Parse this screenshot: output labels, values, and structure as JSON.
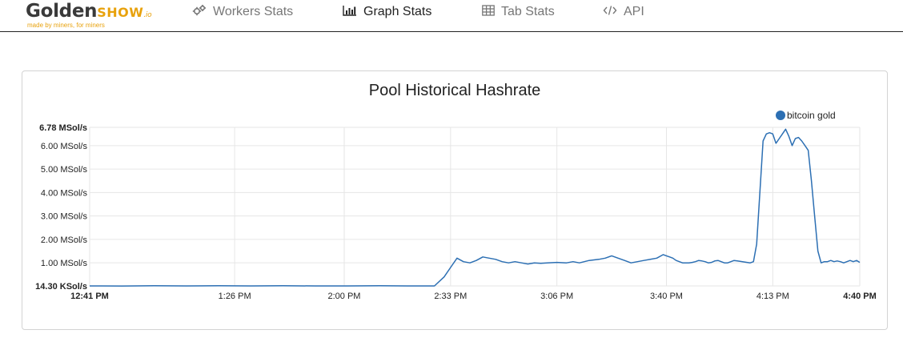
{
  "navbar": {
    "logo": {
      "golden": "Golden",
      "show": "SHOW",
      "io": ".io",
      "tagline": "made by miners, for miners"
    },
    "items": [
      {
        "label": "Workers Stats",
        "icon": "gears-icon",
        "active": false
      },
      {
        "label": "Graph Stats",
        "icon": "bar-chart-icon",
        "active": true
      },
      {
        "label": "Tab Stats",
        "icon": "table-icon",
        "active": false
      },
      {
        "label": "API",
        "icon": "code-icon",
        "active": false
      }
    ]
  },
  "colors": {
    "accent": "#e8a20d",
    "series": "#2c6fb3",
    "grid": "#e6e6e6"
  },
  "chart_data": {
    "type": "line",
    "title": "Pool Historical Hashrate",
    "xlabel": "",
    "ylabel": "",
    "x_ticks": [
      "12:41 PM",
      "1:26 PM",
      "2:00 PM",
      "2:33 PM",
      "3:06 PM",
      "3:40 PM",
      "4:13 PM",
      "4:40 PM"
    ],
    "y_ticks": [
      "6.78 MSol/s",
      "6.00 MSol/s",
      "5.00 MSol/s",
      "4.00 MSol/s",
      "3.00 MSol/s",
      "2.00 MSol/s",
      "1.00 MSol/s",
      "14.30 KSol/s"
    ],
    "y_min_label": "14.30 KSol/s",
    "y_max_label": "6.78 MSol/s",
    "x_start_label": "12:41 PM",
    "x_end_label": "4:40 PM",
    "ylim": [
      0.0143,
      6.78
    ],
    "xlim_minutes": [
      0,
      239
    ],
    "legend": {
      "position": "top-right"
    },
    "grid": true,
    "series": [
      {
        "name": "bitcoin gold",
        "x_minutes": [
          0,
          10,
          20,
          30,
          40,
          50,
          60,
          70,
          80,
          90,
          100,
          107,
          110,
          112,
          114,
          116,
          118,
          120,
          122,
          124,
          126,
          128,
          130,
          132,
          134,
          136,
          138,
          140,
          142,
          145,
          148,
          150,
          152,
          155,
          158,
          160,
          162,
          164,
          166,
          168,
          170,
          172,
          174,
          176,
          178,
          179,
          180,
          181,
          182,
          183,
          184,
          185,
          186,
          187,
          188,
          189,
          190,
          191,
          192,
          193,
          194,
          195,
          196,
          197,
          198,
          199,
          200,
          201,
          202,
          203,
          204,
          205,
          206,
          207,
          208,
          209,
          210,
          211,
          212,
          213,
          214,
          215,
          216,
          217,
          218,
          219,
          220,
          221,
          222,
          223,
          224,
          225,
          226,
          227,
          228,
          229,
          230,
          231,
          232,
          233,
          234,
          235,
          236,
          237,
          238,
          239
        ],
        "values": [
          0.0143,
          0.01,
          0.02,
          0.0143,
          0.02,
          0.0143,
          0.02,
          0.0143,
          0.0143,
          0.02,
          0.0143,
          0.0143,
          0.4,
          0.8,
          1.2,
          1.05,
          1.0,
          1.1,
          1.25,
          1.2,
          1.15,
          1.05,
          1.0,
          1.05,
          1.0,
          0.95,
          1.0,
          0.98,
          1.0,
          1.02,
          1.0,
          1.05,
          1.0,
          1.1,
          1.15,
          1.2,
          1.3,
          1.2,
          1.1,
          1.0,
          1.05,
          1.1,
          1.15,
          1.2,
          1.35,
          1.3,
          1.25,
          1.2,
          1.1,
          1.05,
          1.0,
          1.0,
          1.0,
          1.02,
          1.05,
          1.1,
          1.08,
          1.05,
          1.0,
          1.02,
          1.08,
          1.1,
          1.05,
          1.0,
          1.0,
          1.05,
          1.1,
          1.08,
          1.06,
          1.04,
          1.02,
          1.0,
          1.05,
          1.8,
          4.0,
          6.2,
          6.5,
          6.55,
          6.5,
          6.1,
          6.3,
          6.5,
          6.7,
          6.4,
          6.0,
          6.3,
          6.35,
          6.2,
          6.0,
          5.8,
          4.5,
          3.0,
          1.5,
          1.0,
          1.05,
          1.05,
          1.1,
          1.05,
          1.08,
          1.05,
          1.0,
          1.05,
          1.1,
          1.05,
          1.1,
          1.02
        ]
      }
    ]
  }
}
